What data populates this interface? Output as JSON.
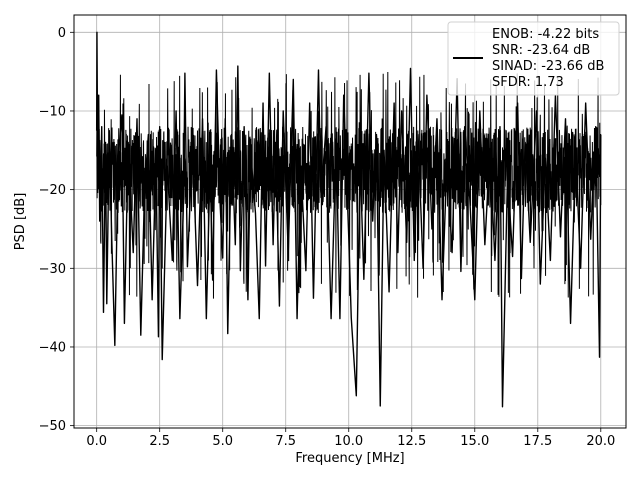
{
  "chart_data": {
    "type": "line",
    "title": "",
    "xlabel": "Frequency [MHz]",
    "ylabel": "PSD [dB]",
    "xlim": [
      -0.9,
      21.0
    ],
    "ylim": [
      -50.3,
      2.2
    ],
    "xticks": [
      0.0,
      2.5,
      5.0,
      7.5,
      10.0,
      12.5,
      15.0,
      17.5,
      20.0
    ],
    "xtick_labels": [
      "0.0",
      "2.5",
      "5.0",
      "7.5",
      "10.0",
      "12.5",
      "15.0",
      "17.5",
      "20.0"
    ],
    "yticks": [
      0,
      -10,
      -20,
      -30,
      -40,
      -50
    ],
    "ytick_labels": [
      "0",
      "−10",
      "−20",
      "−30",
      "−40",
      "−50"
    ],
    "grid": true,
    "legend_position": "top-right",
    "line_color": "#000000",
    "legend_lines": [
      "ENOB: -4.22 bits",
      "SNR: -23.64 dB",
      "SINAD: -23.66 dB",
      "SFDR: 1.73"
    ],
    "noise_floor_range_db": [
      -23,
      -12
    ],
    "series": [
      {
        "x_range": [
          0.0,
          20.0
        ],
        "points": [
          [
            0.0,
            -12.5
          ],
          [
            0.01,
            0.0
          ],
          [
            0.04,
            -17.0
          ],
          [
            0.08,
            -8.0
          ],
          [
            0.12,
            -24.0
          ],
          [
            0.2,
            -12.0
          ],
          [
            0.27,
            -35.6
          ],
          [
            0.35,
            -14.0
          ],
          [
            0.4,
            -34.5
          ],
          [
            0.5,
            -12.5
          ],
          [
            0.6,
            -26.5
          ],
          [
            0.72,
            -39.8
          ],
          [
            0.85,
            -16.0
          ],
          [
            1.0,
            -10.5
          ],
          [
            1.1,
            -37.0
          ],
          [
            1.25,
            -14.0
          ],
          [
            1.45,
            -28.0
          ],
          [
            1.6,
            -11.0
          ],
          [
            1.75,
            -38.5
          ],
          [
            1.9,
            -20.0
          ],
          [
            2.05,
            -13.0
          ],
          [
            2.2,
            -34.0
          ],
          [
            2.35,
            -16.0
          ],
          [
            2.45,
            -38.7
          ],
          [
            2.5,
            -12.0
          ],
          [
            2.6,
            -41.6
          ],
          [
            2.8,
            -17.0
          ],
          [
            3.0,
            -29.0
          ],
          [
            3.15,
            -10.0
          ],
          [
            3.3,
            -36.4
          ],
          [
            3.45,
            -21.0
          ],
          [
            3.5,
            -5.2
          ],
          [
            3.6,
            -29.8
          ],
          [
            3.8,
            -14.0
          ],
          [
            4.0,
            -32.2
          ],
          [
            4.2,
            -11.0
          ],
          [
            4.35,
            -36.4
          ],
          [
            4.5,
            -17.0
          ],
          [
            4.6,
            -31.5
          ],
          [
            4.75,
            -4.8
          ],
          [
            4.9,
            -22.0
          ],
          [
            5.0,
            -28.7
          ],
          [
            5.1,
            -11.0
          ],
          [
            5.2,
            -38.3
          ],
          [
            5.35,
            -13.0
          ],
          [
            5.5,
            -27.0
          ],
          [
            5.6,
            -4.3
          ],
          [
            5.7,
            -30.3
          ],
          [
            5.85,
            -12.0
          ],
          [
            6.0,
            -34.0
          ],
          [
            6.1,
            -15.0
          ],
          [
            6.3,
            -23.0
          ],
          [
            6.45,
            -36.4
          ],
          [
            6.6,
            -9.0
          ],
          [
            6.7,
            -29.7
          ],
          [
            6.85,
            -5.2
          ],
          [
            7.0,
            -27.0
          ],
          [
            7.1,
            -14.0
          ],
          [
            7.25,
            -34.8
          ],
          [
            7.4,
            -10.0
          ],
          [
            7.6,
            -28.0
          ],
          [
            7.8,
            -6.0
          ],
          [
            7.95,
            -36.4
          ],
          [
            8.1,
            -17.0
          ],
          [
            8.3,
            -30.3
          ],
          [
            8.45,
            -9.0
          ],
          [
            8.6,
            -33.8
          ],
          [
            8.8,
            -4.8
          ],
          [
            8.9,
            -21.0
          ],
          [
            9.1,
            -12.0
          ],
          [
            9.3,
            -36.4
          ],
          [
            9.5,
            -14.0
          ],
          [
            9.65,
            -36.4
          ],
          [
            9.8,
            -8.0
          ],
          [
            10.0,
            -26.0
          ],
          [
            10.1,
            -36.3
          ],
          [
            10.3,
            -46.2
          ],
          [
            10.45,
            -16.0
          ],
          [
            10.6,
            -31.4
          ],
          [
            10.8,
            -5.2
          ],
          [
            10.95,
            -24.0
          ],
          [
            11.1,
            -13.0
          ],
          [
            11.25,
            -47.5
          ],
          [
            11.4,
            -15.0
          ],
          [
            11.6,
            -33.0
          ],
          [
            11.8,
            -9.0
          ],
          [
            11.95,
            -28.0
          ],
          [
            12.1,
            -10.0
          ],
          [
            12.3,
            -26.7
          ],
          [
            12.45,
            -4.6
          ],
          [
            12.6,
            -29.0
          ],
          [
            12.75,
            -13.0
          ],
          [
            12.95,
            -30.0
          ],
          [
            13.1,
            -8.0
          ],
          [
            13.3,
            -25.0
          ],
          [
            13.5,
            -11.0
          ],
          [
            13.7,
            -34.0
          ],
          [
            13.9,
            -16.0
          ],
          [
            14.1,
            -28.0
          ],
          [
            14.3,
            -5.9
          ],
          [
            14.45,
            -30.4
          ],
          [
            14.6,
            -12.0
          ],
          [
            14.8,
            -21.0
          ],
          [
            15.0,
            -34.0
          ],
          [
            15.2,
            -10.0
          ],
          [
            15.4,
            -27.0
          ],
          [
            15.6,
            -15.0
          ],
          [
            15.8,
            -29.0
          ],
          [
            16.0,
            -12.0
          ],
          [
            16.1,
            -47.6
          ],
          [
            16.3,
            -18.0
          ],
          [
            16.5,
            -28.5
          ],
          [
            16.7,
            -9.0
          ],
          [
            16.85,
            -31.3
          ],
          [
            17.0,
            -14.0
          ],
          [
            17.2,
            -26.7
          ],
          [
            17.45,
            -10.0
          ],
          [
            17.6,
            -32.0
          ],
          [
            17.8,
            -16.0
          ],
          [
            18.0,
            -29.0
          ],
          [
            18.2,
            -8.0
          ],
          [
            18.4,
            -26.0
          ],
          [
            18.6,
            -11.0
          ],
          [
            18.8,
            -37.0
          ],
          [
            19.0,
            -15.0
          ],
          [
            19.2,
            -30.0
          ],
          [
            19.4,
            -9.0
          ],
          [
            19.6,
            -26.3
          ],
          [
            19.8,
            -12.0
          ],
          [
            19.95,
            -41.3
          ],
          [
            20.0,
            -13.0
          ]
        ]
      }
    ]
  }
}
